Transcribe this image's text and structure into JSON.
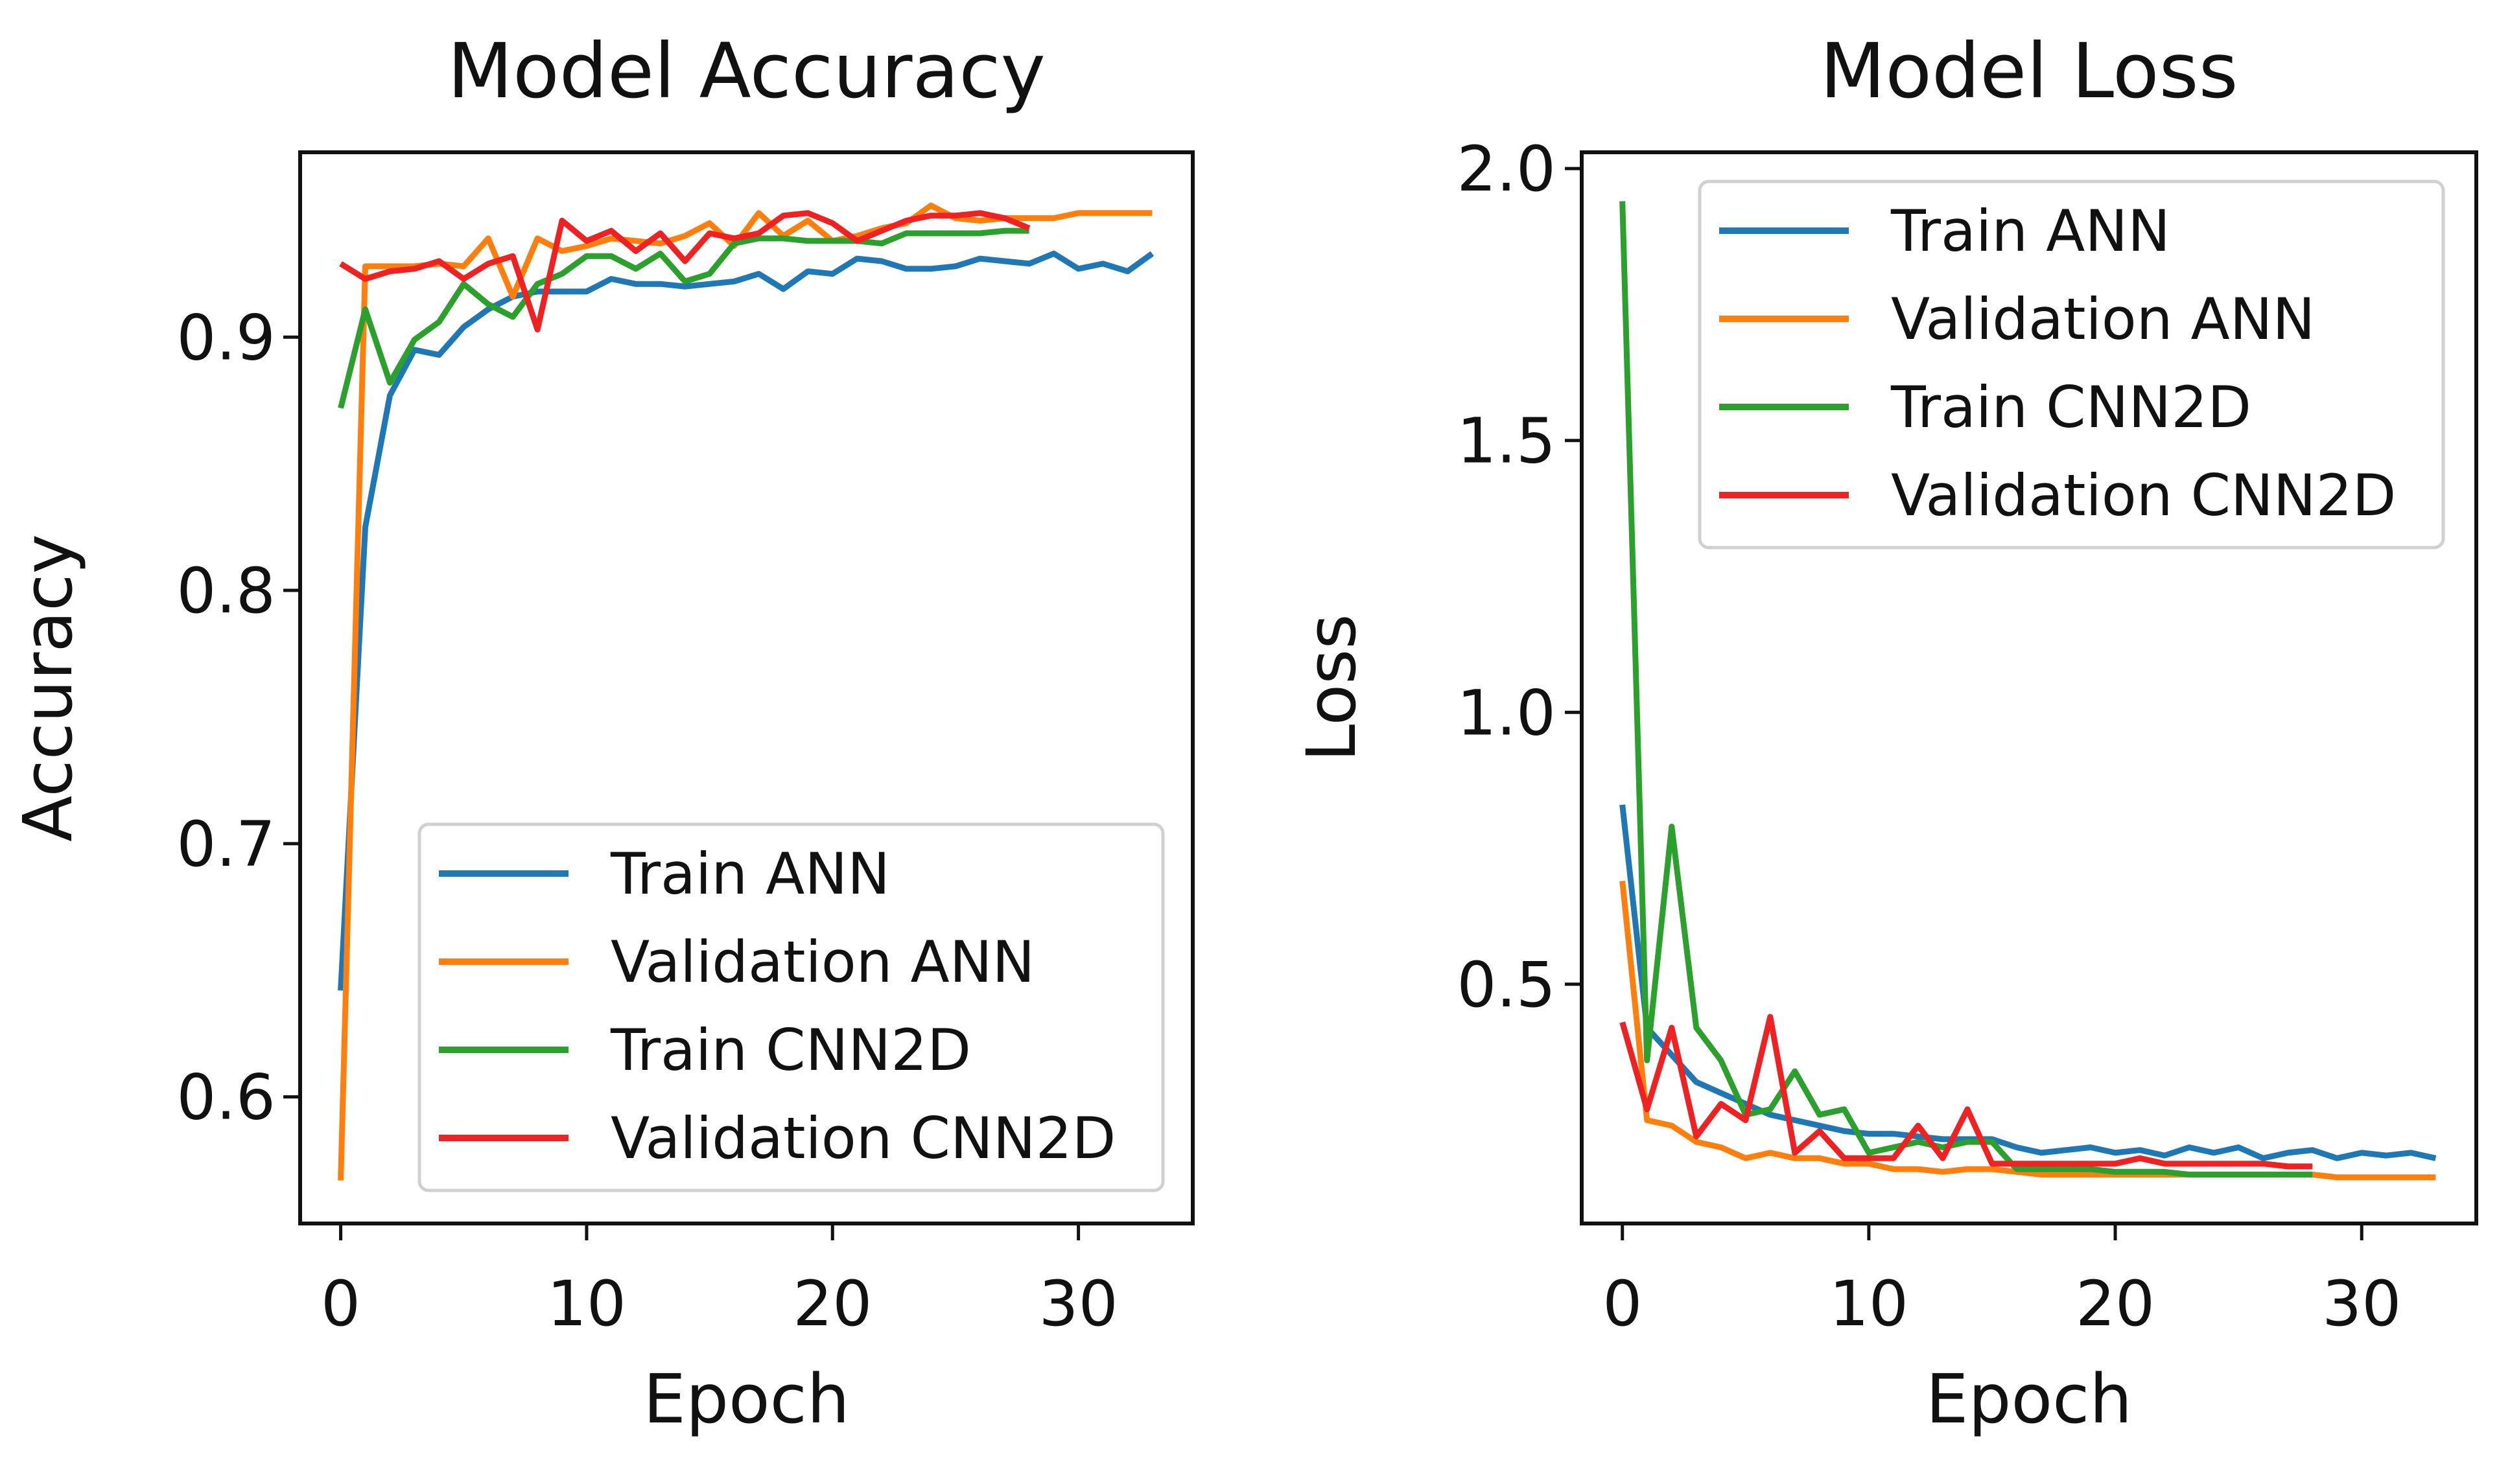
{
  "colors": {
    "train_ann": "#1f77b4",
    "validation_ann": "#ff7f0e",
    "train_cnn2d": "#2ca02c",
    "validation_cnn2d": "#ee2222"
  },
  "chart_data": [
    {
      "type": "line",
      "title": "Model Accuracy",
      "xlabel": "Epoch",
      "ylabel": "Accuracy",
      "xlim": [
        -1.65,
        34.65
      ],
      "ylim": [
        0.55,
        0.973
      ],
      "xticks": [
        0,
        10,
        20,
        30
      ],
      "yticks": [
        0.6,
        0.7,
        0.8,
        0.9
      ],
      "xtick_labels": [
        "0",
        "10",
        "20",
        "30"
      ],
      "ytick_labels": [
        "0.6",
        "0.7",
        "0.8",
        "0.9"
      ],
      "grid": false,
      "legend_position": "lower-right",
      "series": [
        {
          "name": "Train ANN",
          "color_key": "train_ann",
          "x": [
            0,
            1,
            2,
            3,
            4,
            5,
            6,
            7,
            8,
            9,
            10,
            11,
            12,
            13,
            14,
            15,
            16,
            17,
            18,
            19,
            20,
            21,
            22,
            23,
            24,
            25,
            26,
            27,
            28,
            29,
            30,
            31,
            32,
            33
          ],
          "y": [
            0.642,
            0.825,
            0.877,
            0.895,
            0.893,
            0.904,
            0.911,
            0.916,
            0.918,
            0.918,
            0.918,
            0.923,
            0.921,
            0.921,
            0.92,
            0.921,
            0.922,
            0.925,
            0.919,
            0.926,
            0.925,
            0.931,
            0.93,
            0.927,
            0.927,
            0.928,
            0.931,
            0.93,
            0.929,
            0.933,
            0.927,
            0.929,
            0.926,
            0.933
          ]
        },
        {
          "name": "Validation ANN",
          "color_key": "validation_ann",
          "x": [
            0,
            1,
            2,
            3,
            4,
            5,
            6,
            7,
            8,
            9,
            10,
            11,
            12,
            13,
            14,
            15,
            16,
            17,
            18,
            19,
            20,
            21,
            22,
            23,
            24,
            25,
            26,
            27,
            28,
            29,
            30,
            31,
            32,
            33
          ],
          "y": [
            0.567,
            0.928,
            0.928,
            0.928,
            0.929,
            0.928,
            0.939,
            0.916,
            0.939,
            0.934,
            0.936,
            0.939,
            0.938,
            0.937,
            0.94,
            0.945,
            0.936,
            0.949,
            0.94,
            0.946,
            0.938,
            0.94,
            0.943,
            0.945,
            0.952,
            0.947,
            0.946,
            0.947,
            0.947,
            0.947,
            0.949,
            0.949,
            0.949,
            0.949
          ]
        },
        {
          "name": "Train CNN2D",
          "color_key": "train_cnn2d",
          "x": [
            0,
            1,
            2,
            3,
            4,
            5,
            6,
            7,
            8,
            9,
            10,
            11,
            12,
            13,
            14,
            15,
            16,
            17,
            18,
            19,
            20,
            21,
            22,
            23,
            24,
            25,
            26,
            27,
            28
          ],
          "y": [
            0.872,
            0.911,
            0.882,
            0.899,
            0.906,
            0.921,
            0.913,
            0.908,
            0.921,
            0.925,
            0.932,
            0.932,
            0.927,
            0.933,
            0.922,
            0.925,
            0.937,
            0.939,
            0.939,
            0.938,
            0.938,
            0.938,
            0.937,
            0.941,
            0.941,
            0.941,
            0.941,
            0.942,
            0.942
          ]
        },
        {
          "name": "Validation CNN2D",
          "color_key": "validation_cnn2d",
          "x": [
            0,
            1,
            2,
            3,
            4,
            5,
            6,
            7,
            8,
            9,
            10,
            11,
            12,
            13,
            14,
            15,
            16,
            17,
            18,
            19,
            20,
            21,
            22,
            23,
            24,
            25,
            26,
            27,
            28
          ],
          "y": [
            0.929,
            0.923,
            0.926,
            0.927,
            0.93,
            0.923,
            0.929,
            0.932,
            0.903,
            0.946,
            0.938,
            0.942,
            0.934,
            0.941,
            0.93,
            0.941,
            0.939,
            0.941,
            0.948,
            0.949,
            0.945,
            0.938,
            0.942,
            0.946,
            0.948,
            0.948,
            0.949,
            0.947,
            0.943
          ]
        }
      ]
    },
    {
      "type": "line",
      "title": "Model Loss",
      "xlabel": "Epoch",
      "ylabel": "Loss",
      "xlim": [
        -1.65,
        34.65
      ],
      "ylim": [
        0.06,
        2.03
      ],
      "xticks": [
        0,
        10,
        20,
        30
      ],
      "yticks": [
        0.5,
        1.0,
        1.5,
        2.0
      ],
      "xtick_labels": [
        "0",
        "10",
        "20",
        "30"
      ],
      "ytick_labels": [
        "0.5",
        "1.0",
        "1.5",
        "2.0"
      ],
      "grid": false,
      "legend_position": "upper-right",
      "series": [
        {
          "name": "Train ANN",
          "color_key": "train_ann",
          "x": [
            0,
            1,
            2,
            3,
            4,
            5,
            6,
            7,
            8,
            9,
            10,
            11,
            12,
            13,
            14,
            15,
            16,
            17,
            18,
            19,
            20,
            21,
            22,
            23,
            24,
            25,
            26,
            27,
            28,
            29,
            30,
            31,
            32,
            33
          ],
          "y": [
            0.83,
            0.42,
            0.37,
            0.32,
            0.3,
            0.28,
            0.26,
            0.25,
            0.24,
            0.23,
            0.225,
            0.225,
            0.22,
            0.215,
            0.215,
            0.215,
            0.2,
            0.19,
            0.195,
            0.2,
            0.19,
            0.195,
            0.185,
            0.2,
            0.19,
            0.2,
            0.18,
            0.19,
            0.195,
            0.18,
            0.19,
            0.185,
            0.19,
            0.18
          ]
        },
        {
          "name": "Validation ANN",
          "color_key": "validation_ann",
          "x": [
            0,
            1,
            2,
            3,
            4,
            5,
            6,
            7,
            8,
            9,
            10,
            11,
            12,
            13,
            14,
            15,
            16,
            17,
            18,
            19,
            20,
            21,
            22,
            23,
            24,
            25,
            26,
            27,
            28,
            29,
            30,
            31,
            32,
            33
          ],
          "y": [
            0.69,
            0.25,
            0.24,
            0.21,
            0.2,
            0.18,
            0.19,
            0.18,
            0.18,
            0.17,
            0.17,
            0.16,
            0.16,
            0.155,
            0.16,
            0.16,
            0.155,
            0.15,
            0.15,
            0.15,
            0.15,
            0.15,
            0.15,
            0.15,
            0.15,
            0.15,
            0.15,
            0.15,
            0.15,
            0.145,
            0.145,
            0.145,
            0.145,
            0.145
          ]
        },
        {
          "name": "Train CNN2D",
          "color_key": "train_cnn2d",
          "x": [
            0,
            1,
            2,
            3,
            4,
            5,
            6,
            7,
            8,
            9,
            10,
            11,
            12,
            13,
            14,
            15,
            16,
            17,
            18,
            19,
            20,
            21,
            22,
            23,
            24,
            25,
            26,
            27,
            28
          ],
          "y": [
            1.94,
            0.36,
            0.79,
            0.42,
            0.36,
            0.26,
            0.27,
            0.34,
            0.26,
            0.27,
            0.19,
            0.2,
            0.21,
            0.2,
            0.21,
            0.21,
            0.16,
            0.16,
            0.16,
            0.16,
            0.155,
            0.155,
            0.155,
            0.15,
            0.15,
            0.15,
            0.15,
            0.15,
            0.15
          ]
        },
        {
          "name": "Validation CNN2D",
          "color_key": "validation_cnn2d",
          "x": [
            0,
            1,
            2,
            3,
            4,
            5,
            6,
            7,
            8,
            9,
            10,
            11,
            12,
            13,
            14,
            15,
            16,
            17,
            18,
            19,
            20,
            21,
            22,
            23,
            24,
            25,
            26,
            27,
            28
          ],
          "y": [
            0.43,
            0.27,
            0.42,
            0.22,
            0.28,
            0.25,
            0.44,
            0.19,
            0.23,
            0.18,
            0.18,
            0.18,
            0.24,
            0.18,
            0.27,
            0.17,
            0.17,
            0.17,
            0.17,
            0.17,
            0.17,
            0.18,
            0.17,
            0.17,
            0.17,
            0.17,
            0.17,
            0.165,
            0.165
          ]
        }
      ]
    }
  ]
}
